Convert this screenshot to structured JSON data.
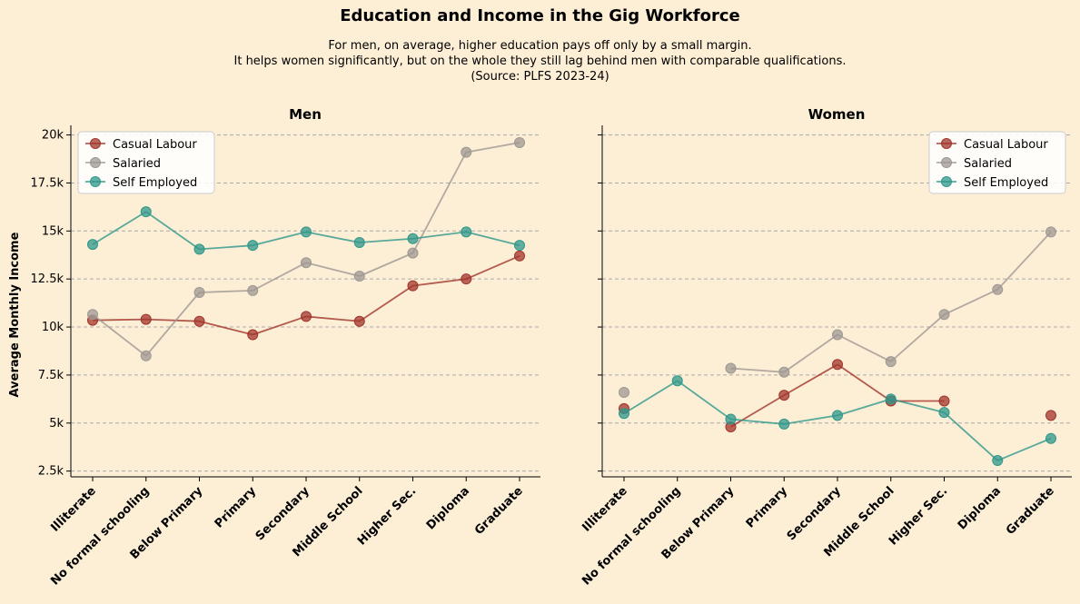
{
  "title": "Education and Income in the Gig Workforce",
  "subtitle_lines": [
    "For men, on average, higher education pays off only by a small margin.",
    "It helps women significantly, but on the whole they still lag behind men with comparable qualifications.",
    "(Source: PLFS 2023-24)"
  ],
  "chart_data": [
    {
      "type": "line",
      "title": "Men",
      "ylabel": "Average Monthly Income",
      "categories": [
        "Illiterate",
        "No formal schooling",
        "Below Primary",
        "Primary",
        "Secondary",
        "Middle School",
        "Higher Sec.",
        "Diploma",
        "Graduate"
      ],
      "yticks": [
        2500,
        5000,
        7500,
        10000,
        12500,
        15000,
        17500,
        20000
      ],
      "ytick_labels": [
        "2.5k",
        "5k",
        "7.5k",
        "10k",
        "12.5k",
        "15k",
        "17.5k",
        "20k"
      ],
      "ylim": [
        2200,
        20500
      ],
      "grid": "horizontal dashed",
      "legend_position": "top-left",
      "series": [
        {
          "name": "Casual Labour",
          "color": "#A0342B",
          "values": [
            10350,
            10400,
            10300,
            9600,
            10550,
            10300,
            12150,
            12500,
            13700
          ]
        },
        {
          "name": "Salaried",
          "color": "#9E9792",
          "values": [
            10650,
            8500,
            11800,
            11900,
            13350,
            12650,
            13850,
            19100,
            19600
          ]
        },
        {
          "name": "Self Employed",
          "color": "#2E978A",
          "values": [
            14300,
            16000,
            14050,
            14250,
            14950,
            14400,
            14600,
            14950,
            14250
          ]
        }
      ]
    },
    {
      "type": "line",
      "title": "Women",
      "ylabel": "",
      "categories": [
        "Illiterate",
        "No formal schooling",
        "Below Primary",
        "Primary",
        "Secondary",
        "Middle School",
        "Higher Sec.",
        "Diploma",
        "Graduate"
      ],
      "yticks": [
        2500,
        5000,
        7500,
        10000,
        12500,
        15000,
        17500,
        20000
      ],
      "ytick_labels": [
        "2.5k",
        "5k",
        "7.5k",
        "10k",
        "12.5k",
        "15k",
        "17.5k",
        "20k"
      ],
      "ylim": [
        2200,
        20500
      ],
      "grid": "horizontal dashed",
      "legend_position": "top-right",
      "series": [
        {
          "name": "Casual Labour",
          "color": "#A0342B",
          "values": [
            5750,
            null,
            4800,
            6450,
            8050,
            6150,
            6150,
            null,
            5400
          ]
        },
        {
          "name": "Salaried",
          "color": "#9E9792",
          "values": [
            6600,
            null,
            7850,
            7650,
            9600,
            8200,
            10650,
            11950,
            14950
          ]
        },
        {
          "name": "Self Employed",
          "color": "#2E978A",
          "values": [
            5500,
            7200,
            5200,
            4950,
            5400,
            6250,
            5550,
            3050,
            4200
          ]
        }
      ]
    }
  ]
}
